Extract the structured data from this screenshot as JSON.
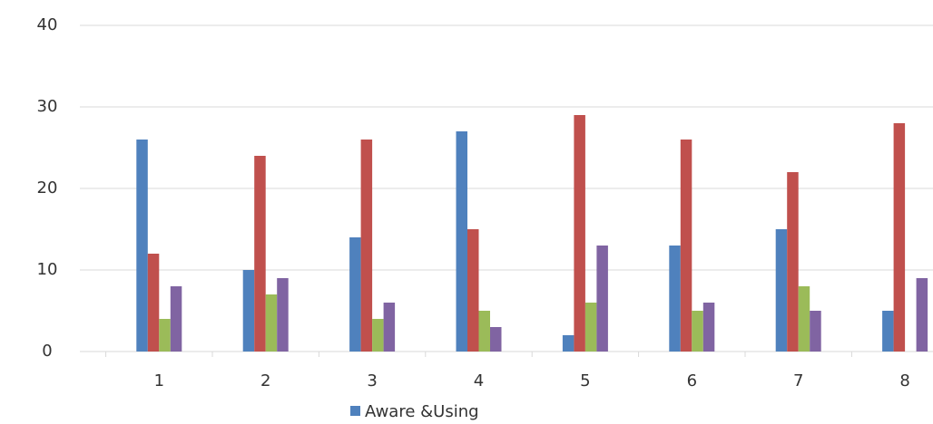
{
  "chart_data": {
    "type": "bar",
    "categories": [
      "1",
      "2",
      "3",
      "4",
      "5",
      "6",
      "7",
      "8"
    ],
    "series": [
      {
        "name": "Aware &Using",
        "color": "#4f81bd",
        "values": [
          26,
          10,
          14,
          27,
          2,
          13,
          15,
          5
        ]
      },
      {
        "color": "#c0504d",
        "values": [
          12,
          24,
          26,
          15,
          29,
          26,
          22,
          28
        ]
      },
      {
        "color": "#9bbb59",
        "values": [
          4,
          7,
          4,
          5,
          6,
          5,
          8,
          0
        ]
      },
      {
        "color": "#8064a2",
        "values": [
          8,
          9,
          6,
          3,
          13,
          6,
          5,
          9
        ]
      }
    ],
    "ylim": [
      0,
      40
    ],
    "yticks": [
      0,
      10,
      20,
      30,
      40
    ],
    "grid": true
  }
}
